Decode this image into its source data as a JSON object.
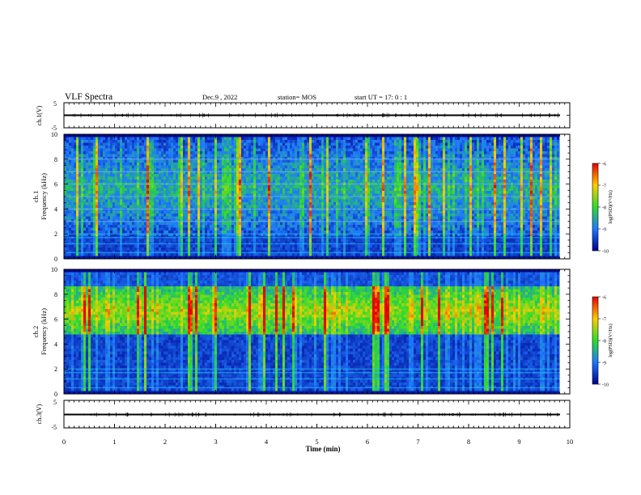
{
  "header": {
    "title": "VLF Spectra",
    "date": "Dec.9 , 2022",
    "station": "station= MOS",
    "start": "start UT = 17: 0 : 1"
  },
  "x_axis": {
    "label": "Time (min)",
    "ticks": [
      "0",
      "1",
      "2",
      "3",
      "4",
      "5",
      "6",
      "7",
      "8",
      "9",
      "10"
    ]
  },
  "panels": {
    "ch1_wave": {
      "ylabel": "ch.1(V)",
      "ticks": [
        "5",
        "-5"
      ]
    },
    "ch1_spec": {
      "ylabel_ch": "ch.1",
      "ylabel_freq": "Frequency (kHz)",
      "ticks": [
        "0",
        "2",
        "4",
        "6",
        "8",
        "10"
      ]
    },
    "ch2_spec": {
      "ylabel_ch": "ch.2",
      "ylabel_freq": "Frequency (kHz)",
      "ticks": [
        "0",
        "2",
        "4",
        "6",
        "8",
        "10"
      ]
    },
    "ch3_wave": {
      "ylabel": "ch.3(V)",
      "ticks": [
        "5",
        "-5"
      ]
    }
  },
  "colorbar": {
    "label": "log(PSD)(V²/Hz)",
    "ticks": [
      "-6",
      "-7",
      "-8",
      "-9",
      "-10"
    ],
    "colors": {
      "low": "#00008c",
      "mid_low": "#1e78ff",
      "mid": "#2ddc2d",
      "mid_high": "#ffcc00",
      "high": "#e60000"
    }
  },
  "chart_data": [
    {
      "type": "line",
      "title": "VLF Spectra",
      "name": "ch.1 waveform",
      "xlabel": "Time (min)",
      "ylabel": "ch.1(V)",
      "xlim": [
        0,
        10
      ],
      "ylim": [
        -5,
        5
      ],
      "x": [
        0,
        9.8
      ],
      "y": [
        0,
        0
      ]
    },
    {
      "type": "heatmap",
      "name": "ch.1 spectrogram",
      "xlabel": "Time (min)",
      "ylabel": "Frequency (kHz)",
      "xlim": [
        0,
        9.8
      ],
      "ylim": [
        0,
        10
      ],
      "zlabel": "log(PSD)(V²/Hz)",
      "zlim": [
        -10,
        -6
      ],
      "background_level": -9.5,
      "dominant_band_khz": [
        2,
        9.5
      ],
      "horizontal_lines_khz": [
        0.5,
        1.2,
        1.7,
        2.0,
        3.0,
        4.0,
        5.0,
        6.0,
        7.0,
        8.0
      ]
    },
    {
      "type": "heatmap",
      "name": "ch.2 spectrogram",
      "xlabel": "Time (min)",
      "ylabel": "Frequency (kHz)",
      "xlim": [
        0,
        9.8
      ],
      "ylim": [
        0,
        10
      ],
      "zlabel": "log(PSD)(V²/Hz)",
      "zlim": [
        -10,
        -6
      ],
      "background_level": -8.5,
      "dominant_band_khz": [
        5,
        8.5
      ],
      "horizontal_lines_khz": [
        0.5,
        1.2,
        1.7,
        2.0
      ]
    },
    {
      "type": "line",
      "name": "ch.3 waveform",
      "xlabel": "Time (min)",
      "ylabel": "ch.3(V)",
      "xlim": [
        0,
        10
      ],
      "ylim": [
        -5,
        5
      ],
      "x": [
        0,
        9.8
      ],
      "y": [
        0,
        0
      ]
    }
  ]
}
